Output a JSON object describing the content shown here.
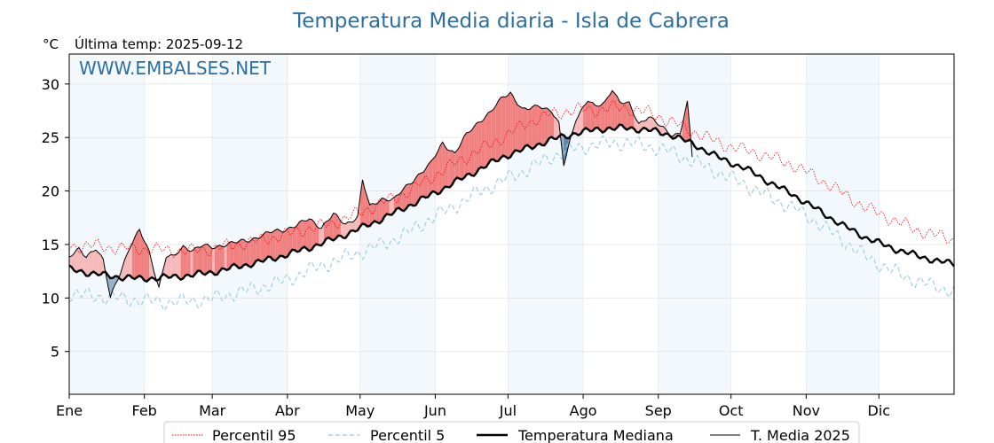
{
  "chart_data": {
    "type": "line",
    "title": "Temperatura Media diaria - Isla de Cabrera",
    "unit": "°C",
    "subtitle": "Última temp: 2025-09-12",
    "watermark": "WWW.EMBALSES.NET",
    "ylim": [
      1,
      30
    ],
    "yticks": [
      5,
      10,
      15,
      20,
      25,
      30
    ],
    "xlim": [
      1,
      366
    ],
    "months": [
      {
        "label": "Ene",
        "day": 1
      },
      {
        "label": "Feb",
        "day": 32
      },
      {
        "label": "Mar",
        "day": 60
      },
      {
        "label": "Abr",
        "day": 91
      },
      {
        "label": "May",
        "day": 121
      },
      {
        "label": "Jun",
        "day": 152
      },
      {
        "label": "Jul",
        "day": 182
      },
      {
        "label": "Ago",
        "day": 213
      },
      {
        "label": "Sep",
        "day": 244
      },
      {
        "label": "Oct",
        "day": 274
      },
      {
        "label": "Nov",
        "day": 305
      },
      {
        "label": "Dic",
        "day": 335
      }
    ],
    "grid": true,
    "legend_position": "bottom",
    "series": [
      {
        "name": "Percentil 95",
        "style": "dotted",
        "color": "#ff0000",
        "x": [
          1,
          10,
          20,
          30,
          40,
          50,
          60,
          70,
          80,
          90,
          100,
          110,
          120,
          125,
          130,
          140,
          150,
          160,
          170,
          180,
          190,
          200,
          210,
          220,
          225,
          230,
          240,
          245,
          250,
          260,
          270,
          280,
          290,
          300,
          310,
          320,
          330,
          340,
          350,
          360,
          366
        ],
        "y": [
          14.8,
          14.9,
          14.7,
          14.6,
          14.5,
          14.4,
          14.6,
          15.0,
          15.4,
          15.9,
          16.5,
          17.0,
          17.9,
          18.4,
          18.9,
          19.8,
          21.2,
          22.6,
          23.8,
          25.0,
          26.4,
          27.2,
          27.6,
          27.6,
          27.8,
          27.8,
          27.3,
          26.9,
          26.4,
          25.4,
          24.4,
          23.8,
          23.2,
          22.4,
          21.2,
          19.8,
          18.4,
          17.4,
          16.4,
          15.8,
          15.4
        ]
      },
      {
        "name": "Percentil 5",
        "style": "dashed",
        "color": "#99ccdd",
        "x": [
          1,
          10,
          20,
          30,
          40,
          50,
          60,
          70,
          80,
          90,
          100,
          110,
          120,
          130,
          140,
          150,
          160,
          170,
          180,
          190,
          200,
          210,
          220,
          230,
          240,
          250,
          260,
          270,
          280,
          290,
          300,
          310,
          320,
          330,
          340,
          350,
          360,
          366
        ],
        "y": [
          10.4,
          10.2,
          10.0,
          9.8,
          9.6,
          9.7,
          9.9,
          10.5,
          11.0,
          11.6,
          12.6,
          13.4,
          14.2,
          15.0,
          16.0,
          17.4,
          18.6,
          19.9,
          21.0,
          22.0,
          23.2,
          24.0,
          24.4,
          24.5,
          24.2,
          23.6,
          22.6,
          21.6,
          20.6,
          19.4,
          18.4,
          17.0,
          15.4,
          13.8,
          12.6,
          11.6,
          11.0,
          10.6
        ]
      },
      {
        "name": "Temperatura Mediana",
        "style": "solid-thick",
        "color": "#000000",
        "x": [
          1,
          10,
          20,
          30,
          40,
          50,
          60,
          70,
          80,
          90,
          100,
          110,
          120,
          130,
          140,
          150,
          160,
          170,
          180,
          190,
          200,
          210,
          220,
          230,
          240,
          250,
          260,
          270,
          280,
          290,
          300,
          310,
          320,
          330,
          340,
          350,
          360,
          366
        ],
        "y": [
          12.7,
          12.3,
          12.0,
          11.8,
          11.9,
          12.1,
          12.4,
          12.9,
          13.4,
          14.0,
          14.7,
          15.5,
          16.4,
          17.4,
          18.5,
          19.6,
          20.8,
          22.0,
          23.2,
          24.0,
          24.8,
          25.4,
          25.8,
          25.9,
          25.7,
          25.2,
          24.2,
          23.0,
          22.1,
          20.8,
          19.6,
          18.2,
          16.8,
          15.6,
          14.7,
          14.0,
          13.4,
          13.2
        ]
      },
      {
        "name": "T. Media 2025",
        "style": "solid-thin",
        "color": "#000000",
        "x": [
          1,
          5,
          8,
          12,
          15,
          18,
          22,
          26,
          30,
          34,
          38,
          41,
          44,
          48,
          52,
          56,
          60,
          65,
          70,
          75,
          80,
          85,
          90,
          95,
          100,
          105,
          110,
          115,
          120,
          122,
          125,
          130,
          135,
          140,
          145,
          150,
          155,
          160,
          165,
          170,
          175,
          180,
          183,
          188,
          190,
          195,
          200,
          203,
          205,
          210,
          215,
          218,
          222,
          225,
          228,
          232,
          236,
          240,
          245,
          250,
          253,
          256,
          258
        ],
        "y": [
          13.8,
          14.5,
          13.9,
          14.7,
          13.5,
          10.0,
          12.4,
          14.8,
          16.3,
          14.3,
          11.0,
          13.9,
          13.8,
          14.8,
          14.5,
          14.9,
          14.7,
          15.0,
          15.2,
          15.4,
          15.8,
          16.2,
          16.4,
          16.8,
          17.4,
          16.6,
          17.8,
          16.9,
          17.6,
          21.0,
          18.5,
          19.3,
          19.2,
          20.4,
          21.5,
          22.5,
          24.5,
          23.5,
          25.3,
          26.5,
          27.4,
          28.8,
          29.2,
          27.6,
          27.6,
          28.0,
          27.5,
          26.2,
          22.4,
          26.8,
          28.5,
          27.8,
          28.3,
          29.6,
          28.3,
          28.1,
          26.3,
          27.0,
          26.0,
          25.2,
          25.5,
          28.2,
          23.2
        ]
      }
    ]
  }
}
